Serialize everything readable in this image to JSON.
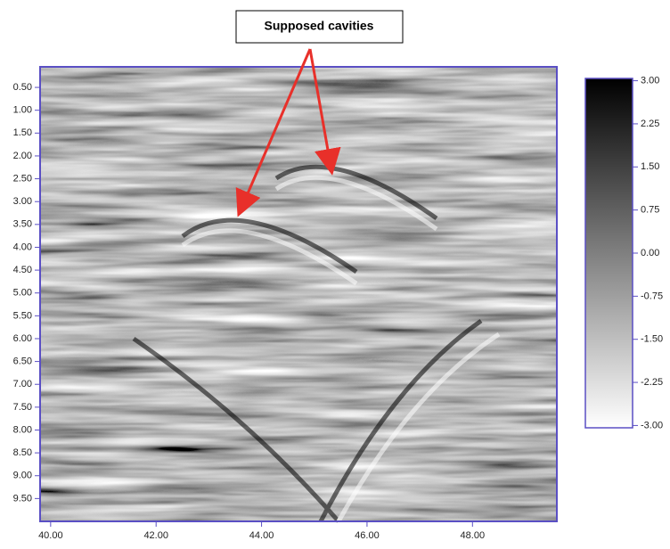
{
  "chart_data": {
    "type": "heatmap",
    "annotation": "Supposed cavities",
    "xlim": [
      39.8,
      49.6
    ],
    "xticks": [
      {
        "value": 40,
        "label": "40.00"
      },
      {
        "value": 42,
        "label": "42.00"
      },
      {
        "value": 44,
        "label": "44.00"
      },
      {
        "value": 46,
        "label": "46.00"
      },
      {
        "value": 48,
        "label": "48.00"
      }
    ],
    "ylim": [
      10.0,
      0.05
    ],
    "yticks": [
      {
        "value": 0.5,
        "label": "0.50"
      },
      {
        "value": 1,
        "label": "1.00"
      },
      {
        "value": 1.5,
        "label": "1.50"
      },
      {
        "value": 2,
        "label": "2.00"
      },
      {
        "value": 2.5,
        "label": "2.50"
      },
      {
        "value": 3,
        "label": "3.00"
      },
      {
        "value": 3.5,
        "label": "3.50"
      },
      {
        "value": 4,
        "label": "4.00"
      },
      {
        "value": 4.5,
        "label": "4.50"
      },
      {
        "value": 5,
        "label": "5.00"
      },
      {
        "value": 5.5,
        "label": "5.50"
      },
      {
        "value": 6,
        "label": "6.00"
      },
      {
        "value": 6.5,
        "label": "6.50"
      },
      {
        "value": 7,
        "label": "7.00"
      },
      {
        "value": 7.5,
        "label": "7.50"
      },
      {
        "value": 8,
        "label": "8.00"
      },
      {
        "value": 8.5,
        "label": "8.50"
      },
      {
        "value": 9,
        "label": "9.00"
      },
      {
        "value": 9.5,
        "label": "9.50"
      }
    ],
    "colorbar": {
      "lim": [
        -3.04,
        3.04
      ],
      "colors": [
        "#ffffff",
        "#000000"
      ],
      "ticks": [
        {
          "value": 3,
          "label": "3.00"
        },
        {
          "value": 2.25,
          "label": "2.25"
        },
        {
          "value": 1.5,
          "label": "1.50"
        },
        {
          "value": 0.75,
          "label": "0.75"
        },
        {
          "value": 0,
          "label": "0.00"
        },
        {
          "value": -0.75,
          "label": "-0.75"
        },
        {
          "value": -1.5,
          "label": "-1.50"
        },
        {
          "value": -2.25,
          "label": "-2.25"
        },
        {
          "value": -3,
          "label": "-3.00"
        }
      ]
    }
  }
}
